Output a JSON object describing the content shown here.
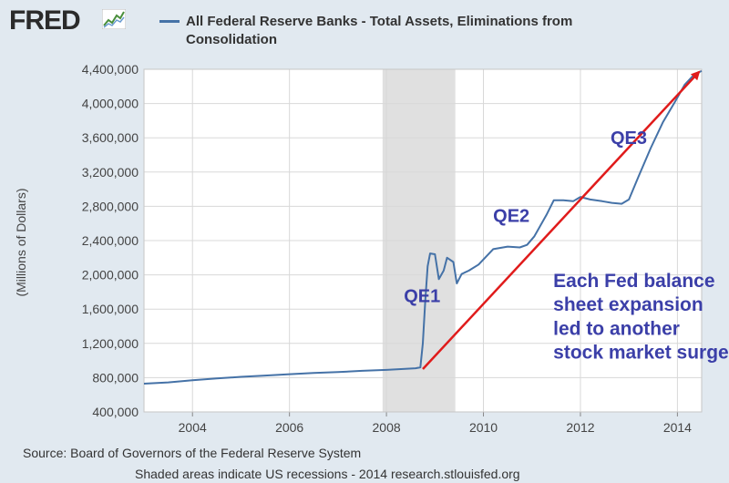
{
  "header": {
    "logo_text": "FRED",
    "legend_label": "All Federal Reserve Banks - Total Assets, Eliminations from Consolidation",
    "series_color": "#4572a7"
  },
  "footer": {
    "source": "Source: Board of Governors of the Federal Reserve System",
    "note": "Shaded areas indicate US recessions - 2014 research.stlouisfed.org"
  },
  "chart_data": {
    "type": "line",
    "title": "",
    "xlabel": "",
    "ylabel": "(Millions of Dollars)",
    "xlim": [
      2003.0,
      2014.5
    ],
    "ylim": [
      400000,
      4400000
    ],
    "x_ticks": [
      2004,
      2006,
      2008,
      2010,
      2012,
      2014
    ],
    "y_ticks": [
      400000,
      800000,
      1200000,
      1600000,
      2000000,
      2400000,
      2800000,
      3200000,
      3600000,
      4000000,
      4400000
    ],
    "y_tick_labels": [
      "400,000",
      "800,000",
      "1,200,000",
      "1,600,000",
      "2,000,000",
      "2,400,000",
      "2,800,000",
      "3,200,000",
      "3,600,000",
      "4,000,000",
      "4,400,000"
    ],
    "x_tick_labels": [
      "2004",
      "2006",
      "2008",
      "2010",
      "2012",
      "2014"
    ],
    "grid": true,
    "recession": {
      "start": 2007.92,
      "end": 2009.42,
      "color": "#e0e0e0"
    },
    "series": [
      {
        "name": "All Federal Reserve Banks - Total Assets, Eliminations from Consolidation",
        "color": "#4572a7",
        "points": [
          [
            2003.0,
            730000
          ],
          [
            2003.5,
            745000
          ],
          [
            2004.0,
            770000
          ],
          [
            2004.5,
            790000
          ],
          [
            2005.0,
            810000
          ],
          [
            2005.5,
            825000
          ],
          [
            2006.0,
            840000
          ],
          [
            2006.5,
            855000
          ],
          [
            2007.0,
            865000
          ],
          [
            2007.5,
            880000
          ],
          [
            2008.0,
            890000
          ],
          [
            2008.3,
            900000
          ],
          [
            2008.6,
            910000
          ],
          [
            2008.7,
            920000
          ],
          [
            2008.75,
            1200000
          ],
          [
            2008.8,
            1700000
          ],
          [
            2008.85,
            2100000
          ],
          [
            2008.9,
            2250000
          ],
          [
            2009.0,
            2240000
          ],
          [
            2009.08,
            1950000
          ],
          [
            2009.18,
            2050000
          ],
          [
            2009.25,
            2200000
          ],
          [
            2009.38,
            2150000
          ],
          [
            2009.45,
            1900000
          ],
          [
            2009.55,
            2010000
          ],
          [
            2009.7,
            2050000
          ],
          [
            2009.9,
            2120000
          ],
          [
            2010.2,
            2300000
          ],
          [
            2010.5,
            2330000
          ],
          [
            2010.75,
            2320000
          ],
          [
            2010.9,
            2350000
          ],
          [
            2011.05,
            2450000
          ],
          [
            2011.3,
            2700000
          ],
          [
            2011.45,
            2870000
          ],
          [
            2011.65,
            2870000
          ],
          [
            2011.85,
            2860000
          ],
          [
            2012.0,
            2910000
          ],
          [
            2012.2,
            2880000
          ],
          [
            2012.45,
            2860000
          ],
          [
            2012.65,
            2840000
          ],
          [
            2012.85,
            2830000
          ],
          [
            2013.0,
            2880000
          ],
          [
            2013.2,
            3150000
          ],
          [
            2013.45,
            3480000
          ],
          [
            2013.7,
            3780000
          ],
          [
            2013.95,
            4020000
          ],
          [
            2014.15,
            4220000
          ],
          [
            2014.35,
            4340000
          ],
          [
            2014.5,
            4380000
          ]
        ]
      }
    ],
    "annotations": [
      {
        "text": "QE1",
        "x": 2008.36,
        "y": 1680000,
        "color": "#3b3fa8",
        "size": 20
      },
      {
        "text": "QE2",
        "x": 2010.2,
        "y": 2620000,
        "color": "#3b3fa8",
        "size": 20
      },
      {
        "text": "QE3",
        "x": 2012.62,
        "y": 3530000,
        "color": "#3b3fa8",
        "size": 20
      },
      {
        "text": "Each Fed balance",
        "x": 2011.44,
        "y": 1860000,
        "color": "#3b3fa8",
        "size": 21
      },
      {
        "text": "sheet expansion",
        "x": 2011.44,
        "y": 1580000,
        "color": "#3b3fa8",
        "size": 21
      },
      {
        "text": "led to another",
        "x": 2011.44,
        "y": 1300000,
        "color": "#3b3fa8",
        "size": 21
      },
      {
        "text": "stock market surge",
        "x": 2011.44,
        "y": 1020000,
        "color": "#3b3fa8",
        "size": 21
      }
    ],
    "arrow": {
      "from": [
        2008.75,
        900000
      ],
      "to": [
        2014.5,
        4400000
      ],
      "color": "#e01b1b"
    }
  }
}
